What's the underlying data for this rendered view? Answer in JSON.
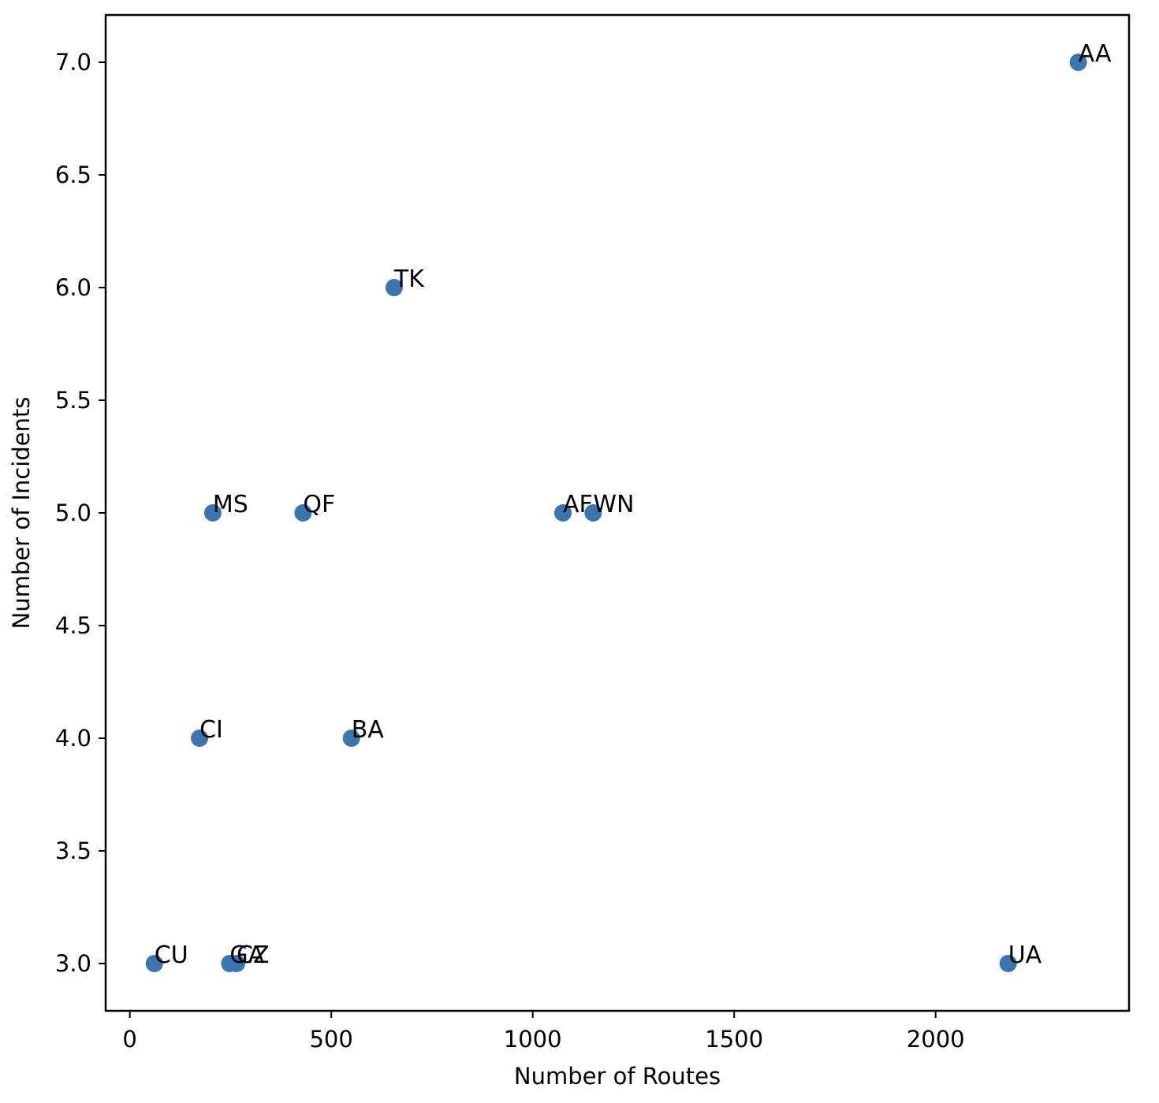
{
  "chart_data": {
    "type": "scatter",
    "title": "",
    "xlabel": "Number of Routes",
    "ylabel": "Number of Incidents",
    "xlim": [
      -60,
      2480
    ],
    "ylim": [
      2.79,
      7.21
    ],
    "xticks": [
      0,
      500,
      1000,
      1500,
      2000
    ],
    "yticks": [
      3.0,
      3.5,
      4.0,
      4.5,
      5.0,
      5.5,
      6.0,
      6.5,
      7.0
    ],
    "xtick_labels": [
      "0",
      "500",
      "1000",
      "1500",
      "2000"
    ],
    "ytick_labels": [
      "3.0",
      "3.5",
      "4.0",
      "4.5",
      "5.0",
      "5.5",
      "6.0",
      "6.5",
      "7.0"
    ],
    "grid": false,
    "marker_color": "#3a75b0",
    "points": [
      {
        "label": "AA",
        "x": 2354,
        "y": 7
      },
      {
        "label": "TK",
        "x": 656,
        "y": 6
      },
      {
        "label": "MS",
        "x": 206,
        "y": 5
      },
      {
        "label": "QF",
        "x": 430,
        "y": 5
      },
      {
        "label": "AF",
        "x": 1075,
        "y": 5
      },
      {
        "label": "WN",
        "x": 1150,
        "y": 5
      },
      {
        "label": "CI",
        "x": 173,
        "y": 4
      },
      {
        "label": "BA",
        "x": 550,
        "y": 4
      },
      {
        "label": "CU",
        "x": 61,
        "y": 3
      },
      {
        "label": "GA",
        "x": 248,
        "y": 3
      },
      {
        "label": "CZ",
        "x": 265,
        "y": 3
      },
      {
        "label": "UA",
        "x": 2180,
        "y": 3
      }
    ]
  }
}
